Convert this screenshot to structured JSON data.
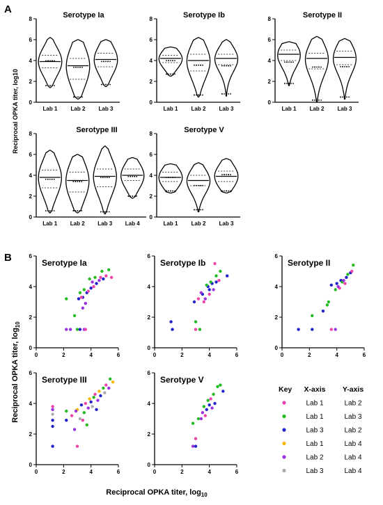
{
  "figure": {
    "panel_a_label": "A",
    "panel_b_label": "B",
    "a_ylabel": "Reciprocal OPKA titer, log10",
    "b_ylabel_main": "Reciprocal OPKA titer, log",
    "b_ylabel_sub": "10",
    "b_xlabel_main": "Reciprocal OPKA titer, log",
    "b_xlabel_sub": "10"
  },
  "chart_data": [
    {
      "type": "violin",
      "title": "Serotype Ia",
      "categories": [
        "Lab 1",
        "Lab 2",
        "Lab 3"
      ],
      "ylim": [
        0,
        8
      ],
      "yticks": [
        0,
        2,
        4,
        6,
        8
      ],
      "medians": [
        3.9,
        3.5,
        4.1
      ],
      "quartiles": [
        [
          3.3,
          4.5
        ],
        [
          2.2,
          4.2
        ],
        [
          3.4,
          4.7
        ]
      ],
      "ranges": [
        [
          1.4,
          6.2
        ],
        [
          0.3,
          6.0
        ],
        [
          1.5,
          6.0
        ]
      ]
    },
    {
      "type": "violin",
      "title": "Serotype Ib",
      "categories": [
        "Lab 1",
        "Lab 2",
        "Lab 3"
      ],
      "ylim": [
        0,
        8
      ],
      "yticks": [
        0,
        2,
        4,
        6,
        8
      ],
      "medians": [
        4.2,
        4.0,
        4.2
      ],
      "quartiles": [
        [
          3.8,
          4.5
        ],
        [
          3.0,
          4.6
        ],
        [
          3.6,
          4.6
        ]
      ],
      "ranges": [
        [
          2.5,
          5.3
        ],
        [
          0.5,
          6.2
        ],
        [
          0.6,
          6.0
        ]
      ]
    },
    {
      "type": "violin",
      "title": "Serotype II",
      "categories": [
        "Lab 1",
        "Lab 2",
        "Lab 3"
      ],
      "ylim": [
        0,
        8
      ],
      "yticks": [
        0,
        2,
        4,
        6,
        8
      ],
      "medians": [
        4.6,
        4.2,
        4.3
      ],
      "quartiles": [
        [
          4.0,
          5.0
        ],
        [
          3.2,
          4.7
        ],
        [
          3.6,
          4.9
        ]
      ],
      "ranges": [
        [
          1.6,
          5.8
        ],
        [
          0.0,
          6.3
        ],
        [
          0.3,
          6.1
        ]
      ]
    },
    {
      "type": "violin",
      "title": "Serotype III",
      "categories": [
        "Lab 1",
        "Lab 2",
        "Lab 3",
        "Lab 4"
      ],
      "ylim": [
        0,
        8
      ],
      "yticks": [
        0,
        2,
        4,
        6,
        8
      ],
      "medians": [
        3.8,
        3.5,
        3.9,
        4.0
      ],
      "quartiles": [
        [
          2.8,
          4.5
        ],
        [
          2.4,
          4.3
        ],
        [
          2.9,
          4.6
        ],
        [
          3.5,
          4.6
        ]
      ],
      "ranges": [
        [
          0.4,
          6.4
        ],
        [
          0.4,
          6.0
        ],
        [
          0.3,
          6.8
        ],
        [
          1.8,
          5.7
        ]
      ]
    },
    {
      "type": "violin",
      "title": "Serotype V",
      "categories": [
        "Lab 1",
        "Lab 2",
        "Lab 3"
      ],
      "ylim": [
        0,
        8
      ],
      "yticks": [
        0,
        2,
        4,
        6,
        8
      ],
      "medians": [
        3.8,
        3.5,
        3.9
      ],
      "quartiles": [
        [
          3.4,
          4.3
        ],
        [
          3.0,
          4.0
        ],
        [
          3.4,
          4.4
        ]
      ],
      "ranges": [
        [
          2.3,
          5.1
        ],
        [
          0.5,
          5.2
        ],
        [
          2.3,
          5.6
        ]
      ]
    },
    {
      "type": "scatter",
      "title": "Serotype Ia",
      "xlim": [
        0,
        6
      ],
      "ylim": [
        0,
        6
      ],
      "ticks": [
        0,
        2,
        4,
        6
      ],
      "points": [
        {
          "x": 2.2,
          "y": 3.2,
          "c": "#22bb22"
        },
        {
          "x": 2.8,
          "y": 2.1,
          "c": "#22bb22"
        },
        {
          "x": 3.2,
          "y": 3.6,
          "c": "#22bb22"
        },
        {
          "x": 3.5,
          "y": 3.8,
          "c": "#22bb22"
        },
        {
          "x": 3.9,
          "y": 4.5,
          "c": "#22bb22"
        },
        {
          "x": 4.3,
          "y": 4.6,
          "c": "#22bb22"
        },
        {
          "x": 4.8,
          "y": 5.0,
          "c": "#22bb22"
        },
        {
          "x": 5.3,
          "y": 5.1,
          "c": "#22bb22"
        },
        {
          "x": 3.0,
          "y": 1.2,
          "c": "#22bb22"
        },
        {
          "x": 3.1,
          "y": 3.2,
          "c": "#2222cc"
        },
        {
          "x": 3.4,
          "y": 3.3,
          "c": "#2222cc"
        },
        {
          "x": 3.7,
          "y": 3.6,
          "c": "#2222cc"
        },
        {
          "x": 4.0,
          "y": 3.9,
          "c": "#2222cc"
        },
        {
          "x": 4.4,
          "y": 4.2,
          "c": "#2222cc"
        },
        {
          "x": 4.9,
          "y": 4.5,
          "c": "#2222cc"
        },
        {
          "x": 3.2,
          "y": 1.2,
          "c": "#2222cc"
        },
        {
          "x": 3.4,
          "y": 2.6,
          "c": "#9933dd"
        },
        {
          "x": 3.6,
          "y": 2.9,
          "c": "#9933dd"
        },
        {
          "x": 4.1,
          "y": 4.3,
          "c": "#9933dd"
        },
        {
          "x": 4.6,
          "y": 4.4,
          "c": "#9933dd"
        },
        {
          "x": 3.5,
          "y": 1.2,
          "c": "#9933dd"
        },
        {
          "x": 2.2,
          "y": 1.2,
          "c": "#9933dd"
        },
        {
          "x": 2.5,
          "y": 1.2,
          "c": "#9933dd"
        },
        {
          "x": 3.3,
          "y": 3.3,
          "c": "#ee44aa"
        },
        {
          "x": 3.8,
          "y": 3.7,
          "c": "#ee44aa"
        },
        {
          "x": 4.2,
          "y": 4.0,
          "c": "#ee44aa"
        },
        {
          "x": 4.7,
          "y": 4.6,
          "c": "#ee44aa"
        },
        {
          "x": 5.1,
          "y": 4.7,
          "c": "#ee44aa"
        },
        {
          "x": 5.5,
          "y": 4.6,
          "c": "#ee44aa"
        },
        {
          "x": 3.6,
          "y": 1.2,
          "c": "#ee44aa"
        }
      ]
    },
    {
      "type": "scatter",
      "title": "Serotype Ib",
      "xlim": [
        0,
        6
      ],
      "ylim": [
        0,
        6
      ],
      "ticks": [
        0,
        2,
        4,
        6
      ],
      "points": [
        {
          "x": 1.2,
          "y": 1.7,
          "c": "#2222cc"
        },
        {
          "x": 1.3,
          "y": 1.2,
          "c": "#2222cc"
        },
        {
          "x": 2.9,
          "y": 3.0,
          "c": "#2222cc"
        },
        {
          "x": 3.5,
          "y": 3.5,
          "c": "#2222cc"
        },
        {
          "x": 3.9,
          "y": 4.0,
          "c": "#2222cc"
        },
        {
          "x": 4.2,
          "y": 4.2,
          "c": "#2222cc"
        },
        {
          "x": 4.5,
          "y": 4.3,
          "c": "#2222cc"
        },
        {
          "x": 5.3,
          "y": 4.7,
          "c": "#2222cc"
        },
        {
          "x": 4.0,
          "y": 3.8,
          "c": "#2222cc"
        },
        {
          "x": 3.0,
          "y": 1.7,
          "c": "#22bb22"
        },
        {
          "x": 3.3,
          "y": 1.2,
          "c": "#22bb22"
        },
        {
          "x": 3.8,
          "y": 4.1,
          "c": "#22bb22"
        },
        {
          "x": 4.1,
          "y": 4.3,
          "c": "#22bb22"
        },
        {
          "x": 4.5,
          "y": 4.7,
          "c": "#22bb22"
        },
        {
          "x": 4.8,
          "y": 5.0,
          "c": "#22bb22"
        },
        {
          "x": 3.2,
          "y": 3.2,
          "c": "#ee44aa"
        },
        {
          "x": 3.6,
          "y": 3.0,
          "c": "#ee44aa"
        },
        {
          "x": 4.0,
          "y": 3.5,
          "c": "#ee44aa"
        },
        {
          "x": 4.4,
          "y": 5.5,
          "c": "#ee44aa"
        },
        {
          "x": 4.7,
          "y": 4.4,
          "c": "#ee44aa"
        },
        {
          "x": 3.0,
          "y": 1.2,
          "c": "#ee44aa"
        },
        {
          "x": 3.4,
          "y": 3.6,
          "c": "#9933dd"
        },
        {
          "x": 3.7,
          "y": 3.2,
          "c": "#9933dd"
        },
        {
          "x": 4.3,
          "y": 3.8,
          "c": "#9933dd"
        }
      ]
    },
    {
      "type": "scatter",
      "title": "Serotype II",
      "xlim": [
        0,
        6
      ],
      "ylim": [
        0,
        6
      ],
      "ticks": [
        0,
        2,
        4,
        6
      ],
      "points": [
        {
          "x": 1.2,
          "y": 1.2,
          "c": "#2222cc"
        },
        {
          "x": 3.0,
          "y": 2.4,
          "c": "#2222cc"
        },
        {
          "x": 3.6,
          "y": 4.1,
          "c": "#2222cc"
        },
        {
          "x": 4.0,
          "y": 4.2,
          "c": "#2222cc"
        },
        {
          "x": 4.3,
          "y": 4.4,
          "c": "#2222cc"
        },
        {
          "x": 4.7,
          "y": 4.6,
          "c": "#2222cc"
        },
        {
          "x": 5.0,
          "y": 4.9,
          "c": "#2222cc"
        },
        {
          "x": 2.2,
          "y": 1.2,
          "c": "#2222cc"
        },
        {
          "x": 2.2,
          "y": 2.1,
          "c": "#22bb22"
        },
        {
          "x": 3.3,
          "y": 2.8,
          "c": "#22bb22"
        },
        {
          "x": 3.4,
          "y": 3.0,
          "c": "#22bb22"
        },
        {
          "x": 3.9,
          "y": 3.8,
          "c": "#22bb22"
        },
        {
          "x": 4.4,
          "y": 4.3,
          "c": "#22bb22"
        },
        {
          "x": 4.8,
          "y": 4.8,
          "c": "#22bb22"
        },
        {
          "x": 5.2,
          "y": 5.4,
          "c": "#22bb22"
        },
        {
          "x": 3.6,
          "y": 1.2,
          "c": "#ee44aa"
        },
        {
          "x": 4.2,
          "y": 3.9,
          "c": "#ee44aa"
        },
        {
          "x": 4.6,
          "y": 4.2,
          "c": "#ee44aa"
        },
        {
          "x": 5.1,
          "y": 5.0,
          "c": "#ee44aa"
        },
        {
          "x": 3.9,
          "y": 1.2,
          "c": "#9933dd"
        },
        {
          "x": 4.5,
          "y": 4.4,
          "c": "#9933dd"
        },
        {
          "x": 4.1,
          "y": 4.0,
          "c": "#9933dd"
        }
      ]
    },
    {
      "type": "scatter",
      "title": "Serotype III",
      "xlim": [
        0,
        6
      ],
      "ylim": [
        0,
        6
      ],
      "ticks": [
        0,
        2,
        4,
        6
      ],
      "points": [
        {
          "x": 1.2,
          "y": 3.8,
          "c": "#ee44aa"
        },
        {
          "x": 1.2,
          "y": 3.6,
          "c": "#9933dd"
        },
        {
          "x": 1.2,
          "y": 3.3,
          "c": "#aaaaaa"
        },
        {
          "x": 1.2,
          "y": 2.9,
          "c": "#2222cc"
        },
        {
          "x": 1.2,
          "y": 2.5,
          "c": "#2222cc"
        },
        {
          "x": 1.2,
          "y": 1.2,
          "c": "#2222cc"
        },
        {
          "x": 2.2,
          "y": 3.5,
          "c": "#22bb22"
        },
        {
          "x": 2.2,
          "y": 2.9,
          "c": "#2222cc"
        },
        {
          "x": 2.6,
          "y": 3.2,
          "c": "#ee44aa"
        },
        {
          "x": 2.8,
          "y": 2.3,
          "c": "#9933dd"
        },
        {
          "x": 3.0,
          "y": 3.6,
          "c": "#f5b700"
        },
        {
          "x": 3.0,
          "y": 1.2,
          "c": "#ee44aa"
        },
        {
          "x": 3.2,
          "y": 3.0,
          "c": "#aaaaaa"
        },
        {
          "x": 3.3,
          "y": 3.9,
          "c": "#2222cc"
        },
        {
          "x": 3.5,
          "y": 3.4,
          "c": "#22bb22"
        },
        {
          "x": 3.6,
          "y": 4.0,
          "c": "#ee44aa"
        },
        {
          "x": 3.8,
          "y": 3.7,
          "c": "#9933dd"
        },
        {
          "x": 3.9,
          "y": 4.3,
          "c": "#f5b700"
        },
        {
          "x": 4.0,
          "y": 4.1,
          "c": "#2222cc"
        },
        {
          "x": 4.1,
          "y": 3.8,
          "c": "#aaaaaa"
        },
        {
          "x": 4.2,
          "y": 4.4,
          "c": "#22bb22"
        },
        {
          "x": 4.3,
          "y": 4.6,
          "c": "#ee44aa"
        },
        {
          "x": 4.5,
          "y": 4.2,
          "c": "#9933dd"
        },
        {
          "x": 4.6,
          "y": 4.8,
          "c": "#f5b700"
        },
        {
          "x": 4.7,
          "y": 4.5,
          "c": "#2222cc"
        },
        {
          "x": 4.9,
          "y": 5.0,
          "c": "#22bb22"
        },
        {
          "x": 5.0,
          "y": 4.7,
          "c": "#aaaaaa"
        },
        {
          "x": 5.1,
          "y": 5.2,
          "c": "#ee44aa"
        },
        {
          "x": 5.3,
          "y": 5.0,
          "c": "#9933dd"
        },
        {
          "x": 5.4,
          "y": 5.6,
          "c": "#22bb22"
        },
        {
          "x": 5.6,
          "y": 5.4,
          "c": "#f5b700"
        },
        {
          "x": 3.7,
          "y": 2.6,
          "c": "#22bb22"
        },
        {
          "x": 3.4,
          "y": 2.9,
          "c": "#ee44aa"
        },
        {
          "x": 4.4,
          "y": 3.6,
          "c": "#2222cc"
        },
        {
          "x": 2.9,
          "y": 3.5,
          "c": "#9933dd"
        }
      ]
    },
    {
      "type": "scatter",
      "title": "Serotype V",
      "xlim": [
        0,
        6
      ],
      "ylim": [
        0,
        6
      ],
      "ticks": [
        0,
        2,
        4,
        6
      ],
      "points": [
        {
          "x": 2.8,
          "y": 1.2,
          "c": "#9933dd"
        },
        {
          "x": 3.0,
          "y": 1.7,
          "c": "#ee44aa"
        },
        {
          "x": 3.0,
          "y": 1.2,
          "c": "#2222cc"
        },
        {
          "x": 2.8,
          "y": 2.7,
          "c": "#22bb22"
        },
        {
          "x": 3.2,
          "y": 3.0,
          "c": "#22bb22"
        },
        {
          "x": 3.5,
          "y": 3.4,
          "c": "#9933dd"
        },
        {
          "x": 3.6,
          "y": 3.8,
          "c": "#22bb22"
        },
        {
          "x": 3.7,
          "y": 3.2,
          "c": "#ee44aa"
        },
        {
          "x": 3.8,
          "y": 3.6,
          "c": "#2222cc"
        },
        {
          "x": 3.9,
          "y": 4.2,
          "c": "#22bb22"
        },
        {
          "x": 4.0,
          "y": 3.9,
          "c": "#2222cc"
        },
        {
          "x": 4.1,
          "y": 4.3,
          "c": "#ee44aa"
        },
        {
          "x": 4.3,
          "y": 4.6,
          "c": "#22bb22"
        },
        {
          "x": 4.4,
          "y": 4.0,
          "c": "#2222cc"
        },
        {
          "x": 4.6,
          "y": 5.1,
          "c": "#22bb22"
        },
        {
          "x": 5.0,
          "y": 4.8,
          "c": "#2222cc"
        },
        {
          "x": 4.8,
          "y": 5.2,
          "c": "#22bb22"
        },
        {
          "x": 3.4,
          "y": 3.0,
          "c": "#9933dd"
        },
        {
          "x": 4.2,
          "y": 3.7,
          "c": "#9933dd"
        }
      ]
    }
  ],
  "key": {
    "headers": [
      "Key",
      "X-axis",
      "Y-axis"
    ],
    "rows": [
      {
        "color": "#ee44aa",
        "x": "Lab 1",
        "y": "Lab 2"
      },
      {
        "color": "#22bb22",
        "x": "Lab 1",
        "y": "Lab 3"
      },
      {
        "color": "#2222cc",
        "x": "Lab 3",
        "y": "Lab 2"
      },
      {
        "color": "#f5b700",
        "x": "Lab 1",
        "y": "Lab 4"
      },
      {
        "color": "#9933dd",
        "x": "Lab 2",
        "y": "Lab 4"
      },
      {
        "color": "#aaaaaa",
        "x": "Lab 3",
        "y": "Lab 4"
      }
    ]
  }
}
